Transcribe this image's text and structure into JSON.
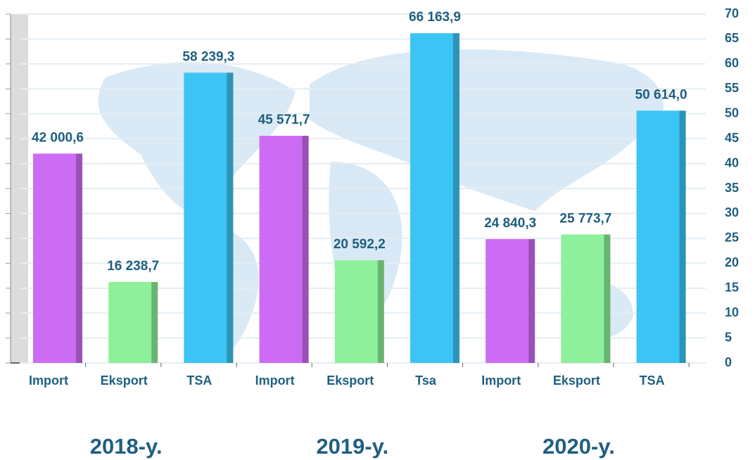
{
  "chart_data": {
    "type": "bar",
    "categories": [
      "Import",
      "Eksport",
      "TSA",
      "Import",
      "Eksport",
      "Tsa",
      "Import",
      "Eksport",
      "TSA"
    ],
    "values": [
      42.0006,
      16.2387,
      58.2393,
      45.5717,
      20.5922,
      66.1639,
      24.8403,
      25.7737,
      50.614
    ],
    "value_labels": [
      "42 000,6",
      "16 238,7",
      "58 239,3",
      "45 571,7",
      "20 592,2",
      "66 163,9",
      "24 840,3",
      "25 773,7",
      "50 614,0"
    ],
    "colors": [
      "#cc6cf4",
      "#8ef09a",
      "#3cc4f4",
      "#cc6cf4",
      "#8ef09a",
      "#3cc4f4",
      "#cc6cf4",
      "#8ef09a",
      "#3cc4f4"
    ],
    "group_labels": [
      "2018-y.",
      "2019-y.",
      "2020-y."
    ],
    "ylim": [
      0,
      70
    ],
    "yticks": [
      0,
      5,
      10,
      15,
      20,
      25,
      30,
      35,
      40,
      45,
      50,
      55,
      60,
      65,
      70
    ],
    "grid": true
  }
}
